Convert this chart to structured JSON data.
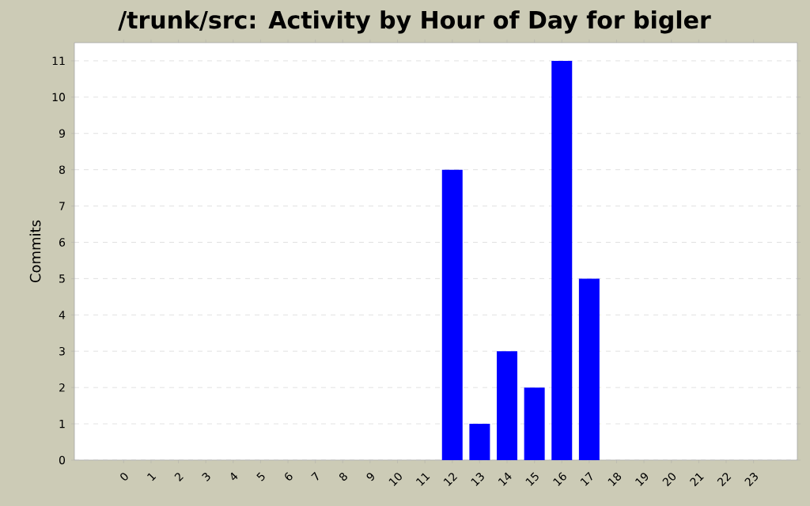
{
  "chart_data": {
    "type": "bar",
    "title": "/trunk/src: Activity by Hour of Day for bigler",
    "ylabel": "Commits",
    "categories": [
      "0",
      "1",
      "2",
      "3",
      "4",
      "5",
      "6",
      "7",
      "8",
      "9",
      "10",
      "11",
      "12",
      "13",
      "14",
      "15",
      "16",
      "17",
      "18",
      "19",
      "20",
      "21",
      "22",
      "23"
    ],
    "values": [
      0,
      0,
      0,
      0,
      0,
      0,
      0,
      0,
      0,
      0,
      0,
      0,
      8,
      1,
      3,
      2,
      11,
      5,
      0,
      0,
      0,
      0,
      0,
      0
    ],
    "color": "#0000ff",
    "ylim": [
      0,
      11.5
    ],
    "yticks": [
      0,
      1,
      2,
      3,
      4,
      5,
      6,
      7,
      8,
      9,
      10,
      11
    ],
    "grid": "y"
  }
}
